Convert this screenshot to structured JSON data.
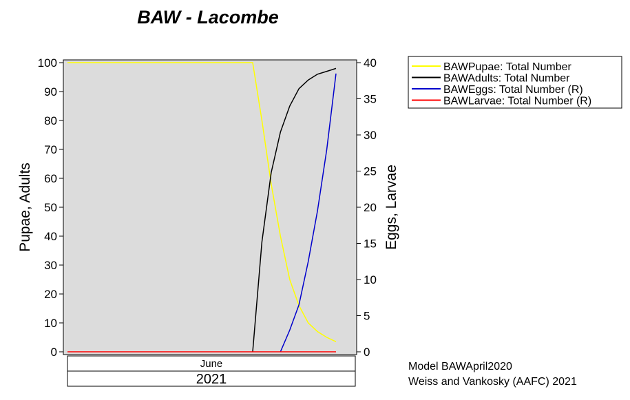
{
  "chart_data": {
    "type": "line",
    "title": "BAW - Lacombe",
    "ylabel": "Pupae, Adults",
    "y2label": "Eggs, Larvae",
    "ylim": [
      0,
      100
    ],
    "y2lim": [
      0,
      40
    ],
    "yticks": [
      0,
      10,
      20,
      30,
      40,
      50,
      60,
      70,
      80,
      90,
      100
    ],
    "y2ticks": [
      0,
      5,
      10,
      15,
      20,
      25,
      30,
      35,
      40
    ],
    "x_month": "June",
    "x_year": "2021",
    "xlim": [
      1,
      30
    ],
    "grid": false,
    "legend_position": "top-right, outside plot",
    "series": [
      {
        "name": "BAWPupae: Total Number",
        "axis": "left",
        "color": "#ffff00",
        "x": [
          1,
          2,
          4,
          6,
          8,
          10,
          12,
          14,
          16,
          18,
          20,
          21,
          22,
          23,
          24,
          25,
          26,
          27,
          28,
          29,
          30
        ],
        "y": [
          100,
          100,
          100,
          100,
          100,
          100,
          100,
          100,
          100,
          100,
          100,
          100,
          80,
          58,
          40,
          25,
          16,
          10,
          7,
          5,
          3.5
        ]
      },
      {
        "name": "BAWAdults: Total Number",
        "axis": "left",
        "color": "#000000",
        "x": [
          21,
          22,
          23,
          24,
          25,
          26,
          27,
          28,
          29,
          30
        ],
        "y": [
          0,
          38,
          62,
          76,
          85,
          91,
          94,
          96,
          97,
          98
        ]
      },
      {
        "name": "BAWEggs: Total Number (R)",
        "axis": "right",
        "color": "#0000cc",
        "x": [
          24,
          25,
          26,
          27,
          28,
          29,
          30
        ],
        "y": [
          0,
          3,
          6.5,
          12.5,
          19.5,
          28,
          38.5
        ]
      },
      {
        "name": "BAWLarvae: Total Number (R)",
        "axis": "right",
        "color": "#ff0000",
        "x": [
          1,
          30
        ],
        "y": [
          0,
          0
        ]
      }
    ]
  },
  "footer": {
    "line1": "Model BAWApril2020",
    "line2": "Weiss and Vankosky  (AAFC) 2021"
  }
}
